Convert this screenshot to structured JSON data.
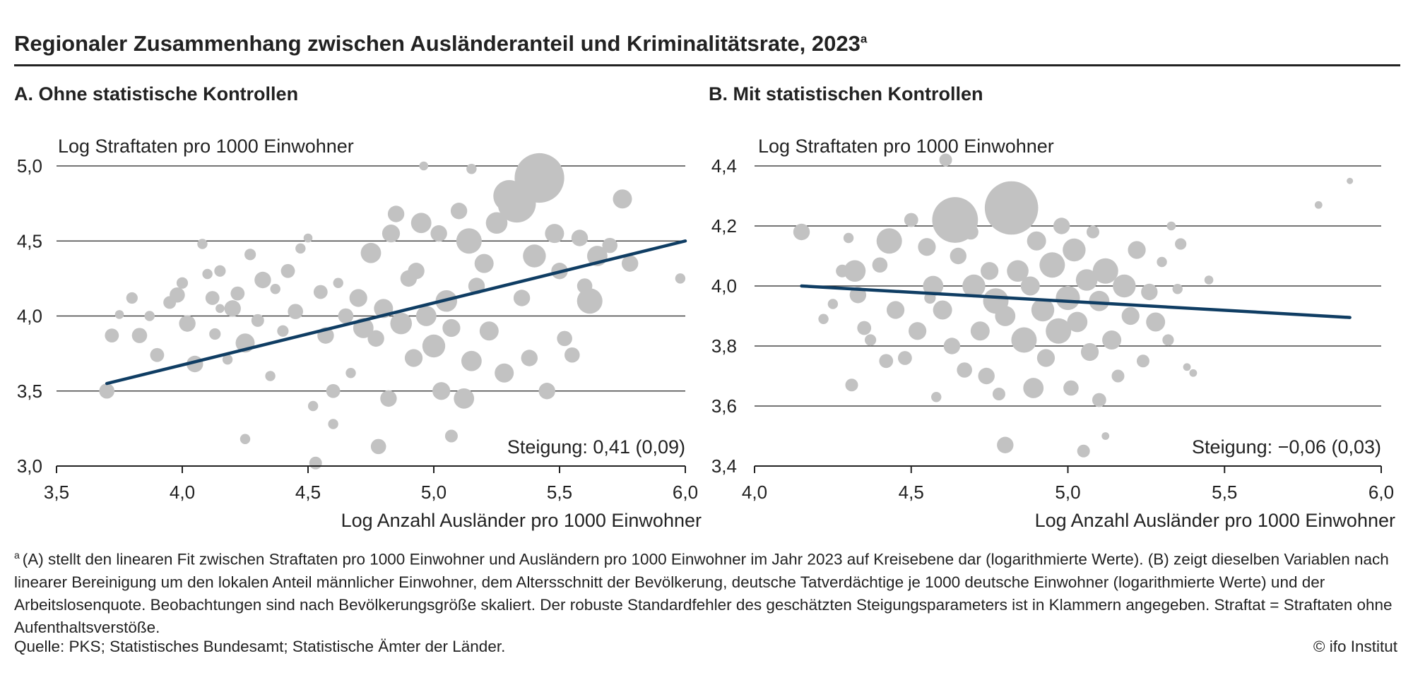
{
  "title": "Regionaler Zusammenhang zwischen Ausländeranteil und Kriminalitätsrate, 2023",
  "title_marker": "a",
  "colors": {
    "points": "#c2c2c2",
    "fit_line": "#0f3d63",
    "grid": "#222222",
    "text": "#222222"
  },
  "chart_data": [
    {
      "type": "scatter",
      "panel_title": "A. Ohne statistische Kontrollen",
      "ylabel": "Log Straftaten pro 1000 Einwohner",
      "xlabel": "Log Anzahl Ausländer pro 1000 Einwohner",
      "xlim": [
        3.5,
        6.0
      ],
      "ylim": [
        3.0,
        5.0
      ],
      "xticks": [
        3.5,
        4.0,
        4.5,
        5.0,
        5.5,
        6.0
      ],
      "xtick_labels": [
        "3,5",
        "4,0",
        "4,5",
        "5,0",
        "5,5",
        "6,0"
      ],
      "yticks": [
        3.0,
        3.5,
        4.0,
        4.5,
        5.0
      ],
      "ytick_labels": [
        "3,0",
        "3,5",
        "4,0",
        "4,5",
        "5,0"
      ],
      "grid": "horizontal",
      "fit_line": {
        "x": [
          3.7,
          6.0
        ],
        "y": [
          3.55,
          4.5
        ]
      },
      "annotation": "Steigung: 0,41 (0,09)",
      "points_note": "approximate; marker size scaled by population",
      "points": [
        [
          3.7,
          3.5,
          1.2
        ],
        [
          3.72,
          3.87,
          1.1
        ],
        [
          3.75,
          4.01,
          0.7
        ],
        [
          3.8,
          4.12,
          0.9
        ],
        [
          3.83,
          3.87,
          1.2
        ],
        [
          3.87,
          4.0,
          0.8
        ],
        [
          3.9,
          3.74,
          1.1
        ],
        [
          3.95,
          4.09,
          1.0
        ],
        [
          3.98,
          4.14,
          1.2
        ],
        [
          4.0,
          4.22,
          0.9
        ],
        [
          4.02,
          3.95,
          1.3
        ],
        [
          4.05,
          3.68,
          1.3
        ],
        [
          4.08,
          4.48,
          0.8
        ],
        [
          4.1,
          4.28,
          0.8
        ],
        [
          4.12,
          4.12,
          1.1
        ],
        [
          4.13,
          3.88,
          0.9
        ],
        [
          4.15,
          4.3,
          0.9
        ],
        [
          4.18,
          3.71,
          0.8
        ],
        [
          4.2,
          4.05,
          1.3
        ],
        [
          4.22,
          4.15,
          1.1
        ],
        [
          4.25,
          3.82,
          1.5
        ],
        [
          4.27,
          4.41,
          0.9
        ],
        [
          4.3,
          3.97,
          1.0
        ],
        [
          4.32,
          4.24,
          1.3
        ],
        [
          4.35,
          3.6,
          0.8
        ],
        [
          4.37,
          4.18,
          0.8
        ],
        [
          4.4,
          3.9,
          0.9
        ],
        [
          4.42,
          4.3,
          1.1
        ],
        [
          4.45,
          4.03,
          1.2
        ],
        [
          4.47,
          4.45,
          0.8
        ],
        [
          4.5,
          4.52,
          0.7
        ],
        [
          4.52,
          3.4,
          0.8
        ],
        [
          4.53,
          3.02,
          1.0
        ],
        [
          4.55,
          4.16,
          1.1
        ],
        [
          4.57,
          3.87,
          1.3
        ],
        [
          4.6,
          3.5,
          1.1
        ],
        [
          4.62,
          4.22,
          0.8
        ],
        [
          4.65,
          4.0,
          1.2
        ],
        [
          4.67,
          3.62,
          0.8
        ],
        [
          4.7,
          4.12,
          1.4
        ],
        [
          4.72,
          3.92,
          1.6
        ],
        [
          4.75,
          4.42,
          1.6
        ],
        [
          4.77,
          3.85,
          1.3
        ],
        [
          4.78,
          3.13,
          1.2
        ],
        [
          4.8,
          4.05,
          1.5
        ],
        [
          4.82,
          3.45,
          1.3
        ],
        [
          4.85,
          4.68,
          1.3
        ],
        [
          4.87,
          3.95,
          1.7
        ],
        [
          4.9,
          4.25,
          1.3
        ],
        [
          4.92,
          3.72,
          1.4
        ],
        [
          4.93,
          4.3,
          1.3
        ],
        [
          4.95,
          4.62,
          1.6
        ],
        [
          4.97,
          4.0,
          1.6
        ],
        [
          5.0,
          3.8,
          1.8
        ],
        [
          5.02,
          4.55,
          1.3
        ],
        [
          5.03,
          3.5,
          1.4
        ],
        [
          5.05,
          4.1,
          1.7
        ],
        [
          5.07,
          3.92,
          1.4
        ],
        [
          5.1,
          4.7,
          1.3
        ],
        [
          5.12,
          3.45,
          1.6
        ],
        [
          5.14,
          4.5,
          2.0
        ],
        [
          5.15,
          3.7,
          1.6
        ],
        [
          5.17,
          4.2,
          1.3
        ],
        [
          5.2,
          4.35,
          1.5
        ],
        [
          5.22,
          3.9,
          1.5
        ],
        [
          5.25,
          4.62,
          1.7
        ],
        [
          5.28,
          3.62,
          1.5
        ],
        [
          5.3,
          4.8,
          2.5
        ],
        [
          5.33,
          4.75,
          3.0
        ],
        [
          5.35,
          4.12,
          1.3
        ],
        [
          5.38,
          3.72,
          1.3
        ],
        [
          5.4,
          4.4,
          1.8
        ],
        [
          5.42,
          4.92,
          3.9
        ],
        [
          5.45,
          3.5,
          1.3
        ],
        [
          5.48,
          4.55,
          1.5
        ],
        [
          5.5,
          4.3,
          1.3
        ],
        [
          5.52,
          3.85,
          1.2
        ],
        [
          5.55,
          3.74,
          1.2
        ],
        [
          5.58,
          4.52,
          1.3
        ],
        [
          5.6,
          4.2,
          1.2
        ],
        [
          5.62,
          4.1,
          2.0
        ],
        [
          5.65,
          4.4,
          1.6
        ],
        [
          5.7,
          4.47,
          1.2
        ],
        [
          5.75,
          4.78,
          1.5
        ],
        [
          5.78,
          4.35,
          1.3
        ],
        [
          5.98,
          4.25,
          0.8
        ],
        [
          4.96,
          5.0,
          0.7
        ],
        [
          5.15,
          4.98,
          0.8
        ],
        [
          4.25,
          3.18,
          0.8
        ],
        [
          4.15,
          4.05,
          0.7
        ],
        [
          4.6,
          3.28,
          0.8
        ],
        [
          4.83,
          4.55,
          1.4
        ],
        [
          5.07,
          3.2,
          1.0
        ]
      ]
    },
    {
      "type": "scatter",
      "panel_title": "B. Mit statistischen Kontrollen",
      "ylabel": "Log Straftaten pro 1000 Einwohner",
      "xlabel": "Log Anzahl Ausländer pro 1000 Einwohner",
      "xlim": [
        4.0,
        6.0
      ],
      "ylim": [
        3.4,
        4.4
      ],
      "xticks": [
        4.0,
        4.5,
        5.0,
        5.5,
        6.0
      ],
      "xtick_labels": [
        "4,0",
        "4,5",
        "5,0",
        "5,5",
        "6,0"
      ],
      "yticks": [
        3.4,
        3.6,
        3.8,
        4.0,
        4.2,
        4.4
      ],
      "ytick_labels": [
        "3,4",
        "3,6",
        "3,8",
        "4,0",
        "4,2",
        "4,4"
      ],
      "grid": "horizontal",
      "fit_line": {
        "x": [
          4.15,
          5.9
        ],
        "y": [
          4.0,
          3.895
        ]
      },
      "annotation": "Steigung: −0,06 (0,03)",
      "points_note": "approximate; marker size scaled by population",
      "points": [
        [
          4.15,
          4.18,
          1.3
        ],
        [
          4.22,
          3.89,
          0.8
        ],
        [
          4.25,
          3.94,
          0.8
        ],
        [
          4.28,
          4.05,
          1.0
        ],
        [
          4.3,
          4.16,
          0.8
        ],
        [
          4.31,
          3.67,
          1.0
        ],
        [
          4.32,
          4.05,
          1.7
        ],
        [
          4.33,
          3.97,
          1.3
        ],
        [
          4.35,
          3.86,
          1.1
        ],
        [
          4.37,
          3.82,
          0.9
        ],
        [
          4.4,
          4.07,
          1.2
        ],
        [
          4.42,
          3.75,
          1.1
        ],
        [
          4.43,
          4.15,
          2.0
        ],
        [
          4.45,
          3.92,
          1.4
        ],
        [
          4.48,
          3.76,
          1.1
        ],
        [
          4.5,
          4.22,
          1.1
        ],
        [
          4.52,
          3.85,
          1.4
        ],
        [
          4.55,
          4.13,
          1.4
        ],
        [
          4.57,
          4.0,
          1.6
        ],
        [
          4.58,
          3.63,
          0.8
        ],
        [
          4.6,
          3.92,
          1.5
        ],
        [
          4.61,
          4.42,
          1.0
        ],
        [
          4.63,
          3.8,
          1.3
        ],
        [
          4.64,
          4.22,
          3.6
        ],
        [
          4.65,
          4.1,
          1.3
        ],
        [
          4.67,
          3.72,
          1.2
        ],
        [
          4.7,
          4.0,
          1.8
        ],
        [
          4.72,
          3.85,
          1.5
        ],
        [
          4.74,
          3.7,
          1.3
        ],
        [
          4.75,
          4.05,
          1.4
        ],
        [
          4.77,
          3.95,
          2.0
        ],
        [
          4.78,
          3.64,
          1.0
        ],
        [
          4.8,
          3.47,
          1.3
        ],
        [
          4.8,
          3.9,
          1.6
        ],
        [
          4.82,
          4.26,
          4.2
        ],
        [
          4.84,
          4.05,
          1.7
        ],
        [
          4.86,
          3.82,
          2.0
        ],
        [
          4.88,
          4.0,
          1.5
        ],
        [
          4.89,
          3.66,
          1.6
        ],
        [
          4.9,
          4.15,
          1.5
        ],
        [
          4.92,
          3.92,
          1.8
        ],
        [
          4.93,
          3.76,
          1.4
        ],
        [
          4.95,
          4.07,
          2.0
        ],
        [
          4.97,
          3.85,
          2.0
        ],
        [
          4.98,
          4.2,
          1.3
        ],
        [
          5.0,
          3.96,
          1.9
        ],
        [
          5.01,
          3.66,
          1.2
        ],
        [
          5.02,
          4.12,
          1.8
        ],
        [
          5.03,
          3.88,
          1.6
        ],
        [
          5.05,
          3.45,
          1.0
        ],
        [
          5.06,
          4.02,
          1.7
        ],
        [
          5.07,
          3.78,
          1.4
        ],
        [
          5.08,
          4.18,
          1.0
        ],
        [
          5.1,
          3.62,
          1.1
        ],
        [
          5.1,
          3.95,
          1.6
        ],
        [
          5.12,
          4.05,
          2.0
        ],
        [
          5.14,
          3.82,
          1.5
        ],
        [
          5.16,
          3.7,
          1.0
        ],
        [
          5.18,
          4.0,
          1.8
        ],
        [
          5.2,
          3.9,
          1.4
        ],
        [
          5.22,
          4.12,
          1.4
        ],
        [
          5.24,
          3.75,
          1.0
        ],
        [
          5.26,
          3.98,
          1.3
        ],
        [
          5.28,
          3.88,
          1.5
        ],
        [
          5.3,
          4.08,
          0.8
        ],
        [
          5.32,
          3.82,
          0.9
        ],
        [
          5.33,
          4.2,
          0.7
        ],
        [
          5.35,
          3.99,
          0.8
        ],
        [
          5.36,
          4.14,
          0.9
        ],
        [
          5.38,
          3.73,
          0.6
        ],
        [
          5.4,
          3.71,
          0.6
        ],
        [
          5.45,
          4.02,
          0.7
        ],
        [
          5.8,
          4.27,
          0.6
        ],
        [
          5.9,
          4.35,
          0.5
        ],
        [
          4.56,
          3.96,
          0.9
        ],
        [
          4.69,
          4.18,
          1.2
        ],
        [
          5.12,
          3.5,
          0.6
        ]
      ]
    }
  ],
  "footnote_marker": "a",
  "footnote": "(A) stellt den linearen Fit zwischen Straftaten pro 1000 Einwohner und Ausländern pro 1000 Einwohner im Jahr 2023 auf Kreisebene dar (logarithmierte Werte). (B) zeigt dieselben Variablen nach linearer Bereinigung um den lokalen Anteil männlicher Einwohner, dem Altersschnitt der Bevölkerung, deutsche Tatverdächtige je 1000 deutsche Einwohner (logarithmierte Werte) und der Arbeitslosenquote. Beobachtungen sind nach Bevölkerungsgröße skaliert. Der robuste Standardfehler des geschätzten Steigungsparameters ist in Klammern angegeben. Straftat = Straftaten ohne Aufenthaltsverstöße.",
  "source": "Quelle: PKS; Statistisches Bundesamt; Statistische Ämter der Länder.",
  "copyright": "© ifo Institut"
}
